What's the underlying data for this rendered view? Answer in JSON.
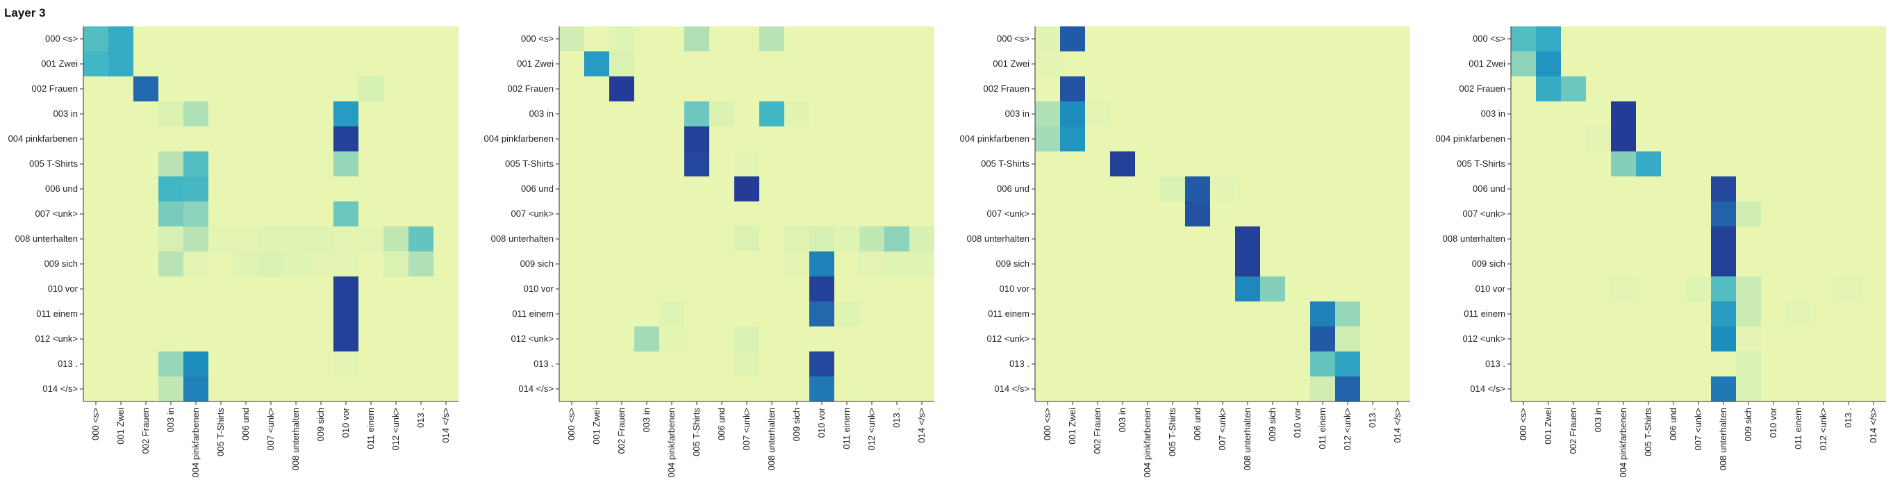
{
  "page": {
    "title": "Layer 3"
  },
  "chart_data": [
    {
      "type": "heatmap",
      "title": "",
      "xlabel": "",
      "ylabel": "",
      "x_tokens": [
        "000 <s>",
        "001 Zwei",
        "002 Frauen",
        "003 in",
        "004 pinkfarbenen",
        "005 T-Shirts",
        "006 und",
        "007 <unk>",
        "008 unterhalten",
        "009 sich",
        "010 vor",
        "011 einem",
        "012 <unk>",
        "013 .",
        "014 </s>"
      ],
      "y_tokens": [
        "000 <s>",
        "001 Zwei",
        "002 Frauen",
        "003 in",
        "004 pinkfarbenen",
        "005 T-Shirts",
        "006 und",
        "007 <unk>",
        "008 unterhalten",
        "009 sich",
        "010 vor",
        "011 einem",
        "012 <unk>",
        "013 .",
        "014 </s>"
      ],
      "value_range": [
        0,
        1
      ],
      "values": [
        [
          0.45,
          0.55,
          0.02,
          0.02,
          0.02,
          0.02,
          0.02,
          0.02,
          0.02,
          0.02,
          0.02,
          0.02,
          0.02,
          0.02,
          0.02
        ],
        [
          0.5,
          0.55,
          0.02,
          0.02,
          0.02,
          0.02,
          0.02,
          0.02,
          0.02,
          0.02,
          0.02,
          0.02,
          0.02,
          0.02,
          0.02
        ],
        [
          0.02,
          0.02,
          0.8,
          0.02,
          0.02,
          0.02,
          0.02,
          0.02,
          0.02,
          0.02,
          0.02,
          0.1,
          0.02,
          0.02,
          0.02
        ],
        [
          0.02,
          0.02,
          0.02,
          0.08,
          0.22,
          0.02,
          0.02,
          0.02,
          0.02,
          0.02,
          0.62,
          0.02,
          0.02,
          0.02,
          0.02
        ],
        [
          0.02,
          0.02,
          0.02,
          0.02,
          0.02,
          0.02,
          0.02,
          0.02,
          0.02,
          0.02,
          0.95,
          0.02,
          0.02,
          0.02,
          0.02
        ],
        [
          0.02,
          0.02,
          0.02,
          0.2,
          0.45,
          0.02,
          0.02,
          0.02,
          0.02,
          0.02,
          0.28,
          0.02,
          0.02,
          0.02,
          0.02
        ],
        [
          0.02,
          0.02,
          0.02,
          0.5,
          0.48,
          0.02,
          0.02,
          0.02,
          0.02,
          0.02,
          0.02,
          0.02,
          0.02,
          0.02,
          0.02
        ],
        [
          0.02,
          0.02,
          0.02,
          0.35,
          0.3,
          0.02,
          0.02,
          0.02,
          0.02,
          0.02,
          0.38,
          0.02,
          0.02,
          0.02,
          0.02
        ],
        [
          0.02,
          0.02,
          0.02,
          0.1,
          0.2,
          0.04,
          0.04,
          0.06,
          0.06,
          0.06,
          0.04,
          0.04,
          0.18,
          0.4,
          0.02
        ],
        [
          0.02,
          0.02,
          0.02,
          0.2,
          0.04,
          0.02,
          0.06,
          0.08,
          0.06,
          0.04,
          0.04,
          0.02,
          0.08,
          0.22,
          0.02
        ],
        [
          0.02,
          0.02,
          0.02,
          0.02,
          0.02,
          0.02,
          0.02,
          0.02,
          0.02,
          0.02,
          0.95,
          0.02,
          0.02,
          0.02,
          0.02
        ],
        [
          0.02,
          0.02,
          0.02,
          0.02,
          0.02,
          0.02,
          0.02,
          0.02,
          0.02,
          0.02,
          0.95,
          0.02,
          0.02,
          0.02,
          0.02
        ],
        [
          0.02,
          0.02,
          0.02,
          0.02,
          0.02,
          0.02,
          0.02,
          0.02,
          0.02,
          0.02,
          0.95,
          0.02,
          0.02,
          0.02,
          0.02
        ],
        [
          0.02,
          0.02,
          0.02,
          0.28,
          0.68,
          0.02,
          0.02,
          0.02,
          0.02,
          0.02,
          0.04,
          0.02,
          0.02,
          0.02,
          0.02
        ],
        [
          0.02,
          0.02,
          0.02,
          0.18,
          0.72,
          0.02,
          0.02,
          0.02,
          0.02,
          0.02,
          0.02,
          0.02,
          0.02,
          0.02,
          0.02
        ]
      ]
    },
    {
      "type": "heatmap",
      "title": "",
      "xlabel": "",
      "ylabel": "",
      "x_tokens": [
        "000 <s>",
        "001 Zwei",
        "002 Frauen",
        "003 in",
        "004 pinkfarbenen",
        "005 T-Shirts",
        "006 und",
        "007 <unk>",
        "008 unterhalten",
        "009 sich",
        "010 vor",
        "011 einem",
        "012 <unk>",
        "013 .",
        "014 </s>"
      ],
      "y_tokens": [
        "000 <s>",
        "001 Zwei",
        "002 Frauen",
        "003 in",
        "004 pinkfarbenen",
        "005 T-Shirts",
        "006 und",
        "007 <unk>",
        "008 unterhalten",
        "009 sich",
        "010 vor",
        "011 einem",
        "012 <unk>",
        "013 .",
        "014 </s>"
      ],
      "value_range": [
        0,
        1
      ],
      "values": [
        [
          0.12,
          0.02,
          0.06,
          0.02,
          0.02,
          0.22,
          0.02,
          0.02,
          0.2,
          0.02,
          0.02,
          0.02,
          0.02,
          0.02,
          0.02
        ],
        [
          0.02,
          0.62,
          0.08,
          0.02,
          0.02,
          0.02,
          0.02,
          0.02,
          0.02,
          0.02,
          0.02,
          0.02,
          0.02,
          0.02,
          0.02
        ],
        [
          0.02,
          0.02,
          0.97,
          0.02,
          0.02,
          0.02,
          0.02,
          0.02,
          0.02,
          0.02,
          0.02,
          0.02,
          0.02,
          0.02,
          0.02
        ],
        [
          0.02,
          0.02,
          0.02,
          0.02,
          0.02,
          0.38,
          0.08,
          0.02,
          0.5,
          0.05,
          0.02,
          0.02,
          0.02,
          0.02,
          0.02
        ],
        [
          0.02,
          0.02,
          0.02,
          0.02,
          0.02,
          0.95,
          0.02,
          0.02,
          0.02,
          0.02,
          0.02,
          0.02,
          0.02,
          0.02,
          0.02
        ],
        [
          0.02,
          0.02,
          0.02,
          0.02,
          0.02,
          0.93,
          0.02,
          0.04,
          0.02,
          0.02,
          0.02,
          0.02,
          0.02,
          0.02,
          0.02
        ],
        [
          0.02,
          0.02,
          0.02,
          0.02,
          0.02,
          0.02,
          0.02,
          0.97,
          0.02,
          0.02,
          0.02,
          0.02,
          0.02,
          0.02,
          0.02
        ],
        [
          0.02,
          0.02,
          0.02,
          0.02,
          0.02,
          0.02,
          0.02,
          0.02,
          0.02,
          0.02,
          0.02,
          0.02,
          0.02,
          0.02,
          0.02
        ],
        [
          0.02,
          0.02,
          0.02,
          0.02,
          0.02,
          0.02,
          0.02,
          0.08,
          0.02,
          0.06,
          0.1,
          0.06,
          0.18,
          0.3,
          0.1
        ],
        [
          0.02,
          0.02,
          0.02,
          0.02,
          0.02,
          0.02,
          0.02,
          0.02,
          0.02,
          0.04,
          0.72,
          0.02,
          0.04,
          0.06,
          0.06
        ],
        [
          0.02,
          0.02,
          0.02,
          0.02,
          0.02,
          0.02,
          0.02,
          0.02,
          0.02,
          0.02,
          0.95,
          0.02,
          0.02,
          0.02,
          0.02
        ],
        [
          0.02,
          0.02,
          0.02,
          0.02,
          0.06,
          0.02,
          0.02,
          0.02,
          0.02,
          0.02,
          0.8,
          0.06,
          0.02,
          0.02,
          0.02
        ],
        [
          0.02,
          0.02,
          0.02,
          0.25,
          0.04,
          0.02,
          0.02,
          0.08,
          0.02,
          0.02,
          0.02,
          0.02,
          0.02,
          0.02,
          0.02
        ],
        [
          0.02,
          0.02,
          0.02,
          0.02,
          0.02,
          0.02,
          0.02,
          0.06,
          0.02,
          0.02,
          0.92,
          0.02,
          0.02,
          0.02,
          0.02
        ],
        [
          0.02,
          0.02,
          0.02,
          0.02,
          0.02,
          0.02,
          0.02,
          0.02,
          0.02,
          0.02,
          0.75,
          0.02,
          0.02,
          0.02,
          0.02
        ]
      ]
    },
    {
      "type": "heatmap",
      "title": "",
      "xlabel": "",
      "ylabel": "",
      "x_tokens": [
        "000 <s>",
        "001 Zwei",
        "002 Frauen",
        "003 in",
        "004 pinkfarbenen",
        "005 T-Shirts",
        "006 und",
        "007 <unk>",
        "008 unterhalten",
        "009 sich",
        "010 vor",
        "011 einem",
        "012 <unk>",
        "013 .",
        "014 </s>"
      ],
      "y_tokens": [
        "000 <s>",
        "001 Zwei",
        "002 Frauen",
        "003 in",
        "004 pinkfarbenen",
        "005 T-Shirts",
        "006 und",
        "007 <unk>",
        "008 unterhalten",
        "009 sich",
        "010 vor",
        "011 einem",
        "012 <unk>",
        "013 .",
        "014 </s>"
      ],
      "value_range": [
        0,
        1
      ],
      "values": [
        [
          0.05,
          0.85,
          0.02,
          0.02,
          0.02,
          0.02,
          0.02,
          0.02,
          0.02,
          0.02,
          0.02,
          0.02,
          0.02,
          0.02,
          0.02
        ],
        [
          0.04,
          0.02,
          0.02,
          0.02,
          0.02,
          0.02,
          0.02,
          0.02,
          0.02,
          0.02,
          0.02,
          0.02,
          0.02,
          0.02,
          0.02
        ],
        [
          0.02,
          0.88,
          0.02,
          0.02,
          0.02,
          0.02,
          0.02,
          0.02,
          0.02,
          0.02,
          0.02,
          0.02,
          0.02,
          0.02,
          0.02
        ],
        [
          0.22,
          0.68,
          0.04,
          0.02,
          0.02,
          0.02,
          0.02,
          0.02,
          0.02,
          0.02,
          0.02,
          0.02,
          0.02,
          0.02,
          0.02
        ],
        [
          0.25,
          0.65,
          0.02,
          0.02,
          0.02,
          0.02,
          0.02,
          0.02,
          0.02,
          0.02,
          0.02,
          0.02,
          0.02,
          0.02,
          0.02
        ],
        [
          0.02,
          0.02,
          0.02,
          0.95,
          0.02,
          0.02,
          0.02,
          0.02,
          0.02,
          0.02,
          0.02,
          0.02,
          0.02,
          0.02,
          0.02
        ],
        [
          0.02,
          0.02,
          0.02,
          0.02,
          0.02,
          0.08,
          0.85,
          0.04,
          0.02,
          0.02,
          0.02,
          0.02,
          0.02,
          0.02,
          0.02
        ],
        [
          0.02,
          0.02,
          0.02,
          0.02,
          0.02,
          0.02,
          0.88,
          0.02,
          0.02,
          0.02,
          0.02,
          0.02,
          0.02,
          0.02,
          0.02
        ],
        [
          0.02,
          0.02,
          0.02,
          0.02,
          0.02,
          0.02,
          0.02,
          0.02,
          0.95,
          0.02,
          0.02,
          0.02,
          0.02,
          0.02,
          0.02
        ],
        [
          0.02,
          0.02,
          0.02,
          0.02,
          0.02,
          0.02,
          0.02,
          0.02,
          0.95,
          0.02,
          0.02,
          0.02,
          0.02,
          0.02,
          0.02
        ],
        [
          0.02,
          0.02,
          0.02,
          0.02,
          0.02,
          0.02,
          0.02,
          0.02,
          0.7,
          0.32,
          0.02,
          0.02,
          0.02,
          0.02,
          0.02
        ],
        [
          0.02,
          0.02,
          0.02,
          0.02,
          0.02,
          0.02,
          0.02,
          0.02,
          0.02,
          0.02,
          0.02,
          0.72,
          0.28,
          0.02,
          0.02
        ],
        [
          0.02,
          0.02,
          0.02,
          0.02,
          0.02,
          0.02,
          0.02,
          0.02,
          0.02,
          0.02,
          0.02,
          0.85,
          0.12,
          0.02,
          0.02
        ],
        [
          0.02,
          0.02,
          0.02,
          0.02,
          0.02,
          0.02,
          0.02,
          0.02,
          0.02,
          0.02,
          0.02,
          0.4,
          0.58,
          0.02,
          0.02
        ],
        [
          0.02,
          0.02,
          0.02,
          0.02,
          0.02,
          0.02,
          0.02,
          0.02,
          0.02,
          0.02,
          0.02,
          0.12,
          0.82,
          0.02,
          0.02
        ]
      ]
    },
    {
      "type": "heatmap",
      "title": "",
      "xlabel": "",
      "ylabel": "",
      "x_tokens": [
        "000 <s>",
        "001 Zwei",
        "002 Frauen",
        "003 in",
        "004 pinkfarbenen",
        "005 T-Shirts",
        "006 und",
        "007 <unk>",
        "008 unterhalten",
        "009 sich",
        "010 vor",
        "011 einem",
        "012 <unk>",
        "013 .",
        "014 </s>"
      ],
      "y_tokens": [
        "000 <s>",
        "001 Zwei",
        "002 Frauen",
        "003 in",
        "004 pinkfarbenen",
        "005 T-Shirts",
        "006 und",
        "007 <unk>",
        "008 unterhalten",
        "009 sich",
        "010 vor",
        "011 einem",
        "012 <unk>",
        "013 .",
        "014 </s>"
      ],
      "value_range": [
        0,
        1
      ],
      "values": [
        [
          0.45,
          0.55,
          0.02,
          0.02,
          0.02,
          0.02,
          0.02,
          0.02,
          0.02,
          0.02,
          0.02,
          0.02,
          0.02,
          0.02,
          0.02
        ],
        [
          0.3,
          0.65,
          0.02,
          0.02,
          0.02,
          0.02,
          0.02,
          0.02,
          0.02,
          0.02,
          0.02,
          0.02,
          0.02,
          0.02,
          0.02
        ],
        [
          0.02,
          0.55,
          0.38,
          0.02,
          0.02,
          0.02,
          0.02,
          0.02,
          0.02,
          0.02,
          0.02,
          0.02,
          0.02,
          0.02,
          0.02
        ],
        [
          0.02,
          0.02,
          0.02,
          0.02,
          0.97,
          0.02,
          0.02,
          0.02,
          0.02,
          0.02,
          0.02,
          0.02,
          0.02,
          0.02,
          0.02
        ],
        [
          0.02,
          0.02,
          0.02,
          0.04,
          0.97,
          0.02,
          0.02,
          0.02,
          0.02,
          0.02,
          0.02,
          0.02,
          0.02,
          0.02,
          0.02
        ],
        [
          0.02,
          0.02,
          0.02,
          0.02,
          0.32,
          0.55,
          0.02,
          0.02,
          0.02,
          0.02,
          0.02,
          0.02,
          0.02,
          0.02,
          0.02
        ],
        [
          0.02,
          0.02,
          0.02,
          0.02,
          0.02,
          0.02,
          0.02,
          0.02,
          0.92,
          0.02,
          0.02,
          0.02,
          0.02,
          0.02,
          0.02
        ],
        [
          0.02,
          0.02,
          0.02,
          0.02,
          0.02,
          0.02,
          0.02,
          0.02,
          0.82,
          0.12,
          0.02,
          0.02,
          0.02,
          0.02,
          0.02
        ],
        [
          0.02,
          0.02,
          0.02,
          0.02,
          0.02,
          0.02,
          0.02,
          0.02,
          0.95,
          0.02,
          0.02,
          0.02,
          0.02,
          0.02,
          0.02
        ],
        [
          0.02,
          0.02,
          0.02,
          0.02,
          0.02,
          0.02,
          0.02,
          0.02,
          0.95,
          0.02,
          0.02,
          0.02,
          0.02,
          0.02,
          0.02
        ],
        [
          0.02,
          0.02,
          0.02,
          0.02,
          0.04,
          0.02,
          0.02,
          0.06,
          0.45,
          0.15,
          0.02,
          0.02,
          0.02,
          0.04,
          0.02
        ],
        [
          0.02,
          0.02,
          0.02,
          0.02,
          0.02,
          0.02,
          0.02,
          0.02,
          0.62,
          0.15,
          0.02,
          0.04,
          0.02,
          0.02,
          0.02
        ],
        [
          0.02,
          0.02,
          0.02,
          0.02,
          0.02,
          0.02,
          0.02,
          0.02,
          0.68,
          0.04,
          0.02,
          0.02,
          0.02,
          0.02,
          0.02
        ],
        [
          0.02,
          0.02,
          0.02,
          0.02,
          0.02,
          0.02,
          0.02,
          0.02,
          0.02,
          0.08,
          0.02,
          0.02,
          0.02,
          0.02,
          0.02
        ],
        [
          0.02,
          0.02,
          0.02,
          0.02,
          0.02,
          0.02,
          0.02,
          0.02,
          0.75,
          0.08,
          0.02,
          0.02,
          0.02,
          0.02,
          0.02
        ]
      ]
    }
  ],
  "colors": {
    "colormap": [
      "#edf8b1",
      "#c7e9b4",
      "#7fcdbb",
      "#41b6c4",
      "#1d91c0",
      "#225ea8",
      "#253494"
    ],
    "axis": "#333333",
    "tick_text": "#222222"
  }
}
